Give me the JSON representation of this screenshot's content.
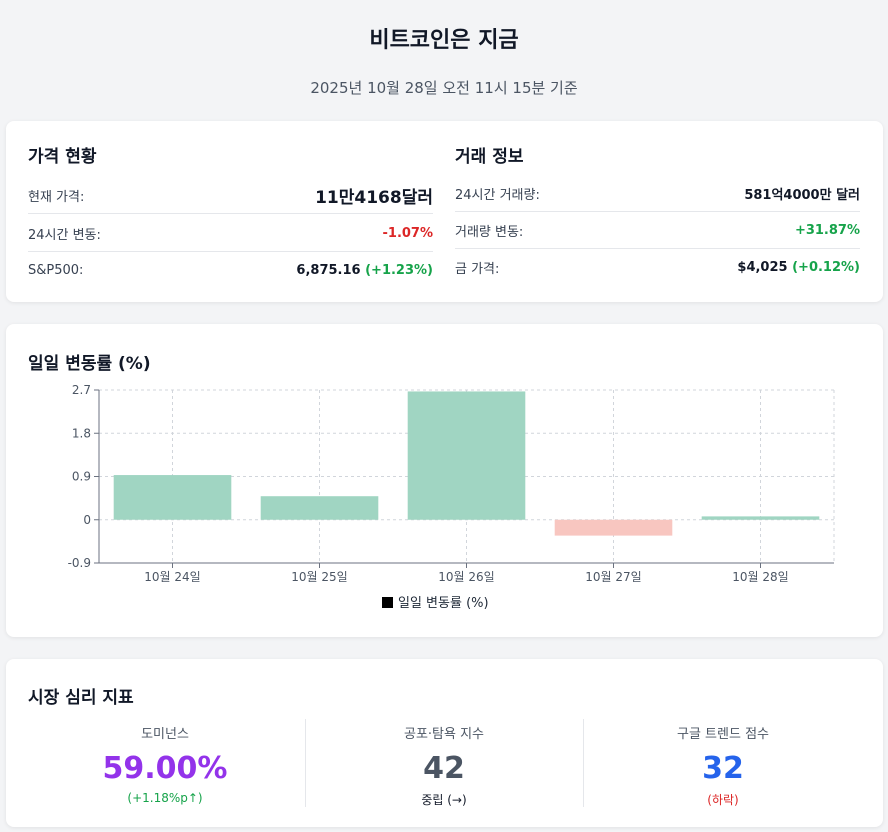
{
  "header": {
    "title": "비트코인은 지금",
    "subtitle": "2025년 10월 28일 오전 11시 15분 기준"
  },
  "price_status": {
    "heading": "가격 현황",
    "rows": [
      {
        "label": "현재 가격:",
        "value": "11만4168달러"
      },
      {
        "label": "24시간 변동:",
        "value": "-1.07%"
      },
      {
        "label": "S&P500:",
        "value": "6,875.16",
        "change": "(+1.23%)"
      }
    ]
  },
  "trade_info": {
    "heading": "거래 정보",
    "rows": [
      {
        "label": "24시간 거래량:",
        "value": "581억4000만 달러"
      },
      {
        "label": "거래량 변동:",
        "value": "+31.87%"
      },
      {
        "label": "금 가격:",
        "value": "$4,025",
        "change": "(+0.12%)"
      }
    ]
  },
  "chart_section": {
    "heading": "일일 변동률 (%)"
  },
  "chart_data": {
    "type": "bar",
    "title": "일일 변동률 (%)",
    "categories": [
      "10월 24일",
      "10월 25일",
      "10월 26일",
      "10월 27일",
      "10월 28일"
    ],
    "series": [
      {
        "name": "일일 변동률 (%)",
        "values": [
          0.93,
          0.49,
          2.67,
          -0.33,
          0.07
        ]
      }
    ],
    "ylim": [
      -0.9,
      2.7
    ],
    "yticks": [
      -0.9,
      0,
      0.9,
      1.8,
      2.7
    ],
    "ytick_labels": [
      "-0.9",
      "0",
      "0.9",
      "1.8",
      "2.7"
    ],
    "grid": true,
    "legend": "bottom",
    "colors": {
      "positive": "#a0d5c2",
      "negative": "#f8c6c0",
      "legend_swatch": "#000000"
    }
  },
  "sentiment": {
    "heading": "시장 심리 지표",
    "metrics": [
      {
        "label": "도미넌스",
        "value": "59.00%",
        "sub": "(+1.18%p↑)",
        "value_color": "#9333ea",
        "sub_color": "#16a34a"
      },
      {
        "label": "공포·탐욕 지수",
        "value": "42",
        "sub": "중립 (→)",
        "value_color": "#4b5563",
        "sub_color": "#111827"
      },
      {
        "label": "구글 트렌드 점수",
        "value": "32",
        "sub": "(하락)",
        "value_color": "#2563eb",
        "sub_color": "#dc2626"
      }
    ]
  }
}
